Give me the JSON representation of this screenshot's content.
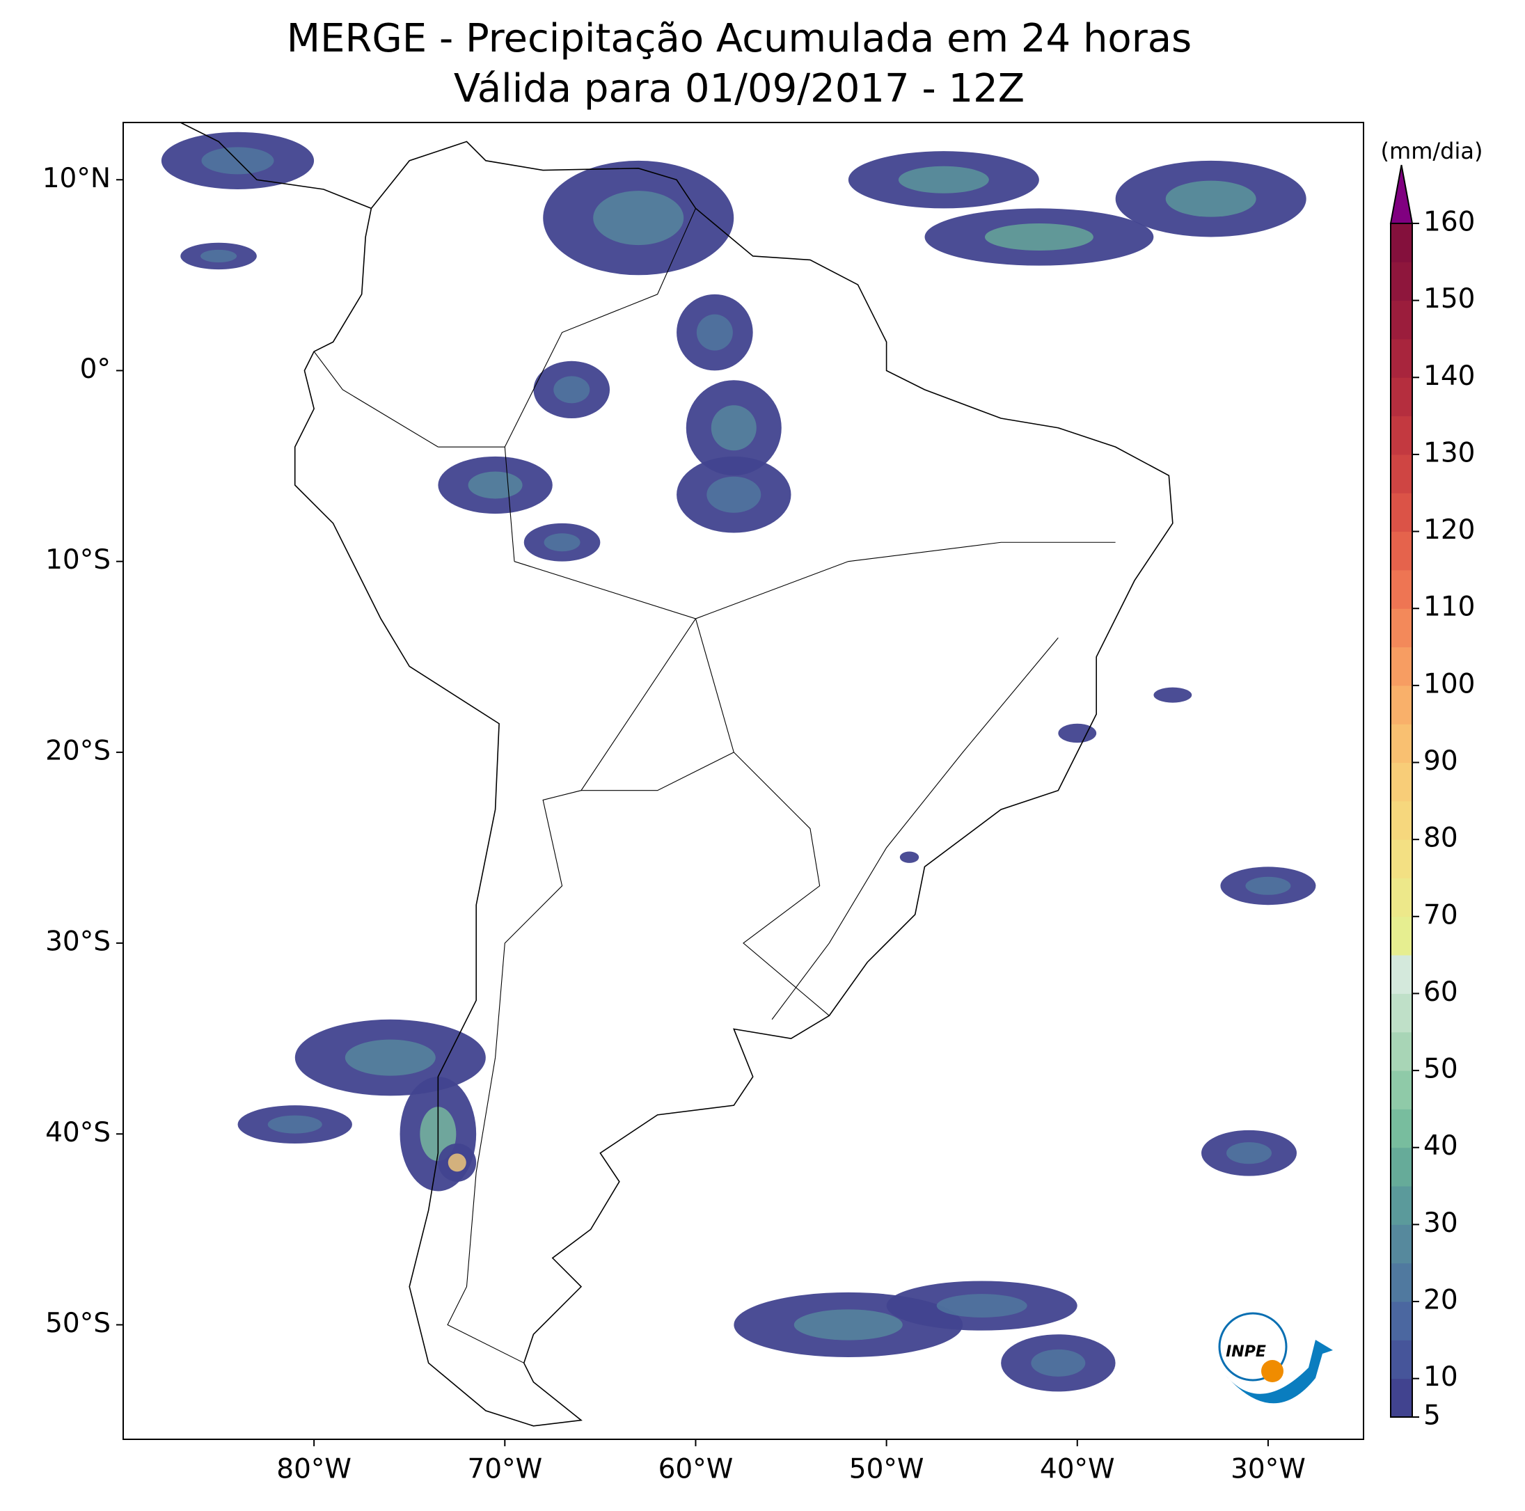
{
  "chart_data": {
    "type": "map",
    "title": "MERGE - Precipitação Acumulada em 24 horas",
    "subtitle": "Válida para 01/09/2017 - 12Z",
    "xlim": [
      -90,
      -25
    ],
    "ylim": [
      -56,
      13
    ],
    "xticks": [
      {
        "value": -80,
        "label": "80°W"
      },
      {
        "value": -70,
        "label": "70°W"
      },
      {
        "value": -60,
        "label": "60°W"
      },
      {
        "value": -50,
        "label": "50°W"
      },
      {
        "value": -40,
        "label": "40°W"
      },
      {
        "value": -30,
        "label": "30°W"
      }
    ],
    "yticks": [
      {
        "value": 10,
        "label": "10°N"
      },
      {
        "value": 0,
        "label": "0°"
      },
      {
        "value": -10,
        "label": "10°S"
      },
      {
        "value": -20,
        "label": "20°S"
      },
      {
        "value": -30,
        "label": "30°S"
      },
      {
        "value": -40,
        "label": "40°S"
      },
      {
        "value": -50,
        "label": "50°S"
      }
    ],
    "colorbar": {
      "label": "(mm/dia)",
      "lim": [
        5,
        160
      ],
      "extend": "max",
      "extend_color": "#800080",
      "ticks": [
        5,
        10,
        20,
        30,
        40,
        50,
        60,
        70,
        80,
        90,
        100,
        110,
        120,
        130,
        140,
        150,
        160
      ],
      "colors": [
        "#41438f",
        "#46559a",
        "#4b67a0",
        "#50799f",
        "#56899d",
        "#5b9a9b",
        "#66ab99",
        "#78bd9e",
        "#8fcaa8",
        "#a8d5b6",
        "#bfe0c8",
        "#d4e9dc",
        "#e6ee90",
        "#ede88a",
        "#f3e083",
        "#f6d77d",
        "#f8cd78",
        "#f9c071",
        "#f9b06a",
        "#f79d62",
        "#f3895a",
        "#ee7553",
        "#e5634c",
        "#db5347",
        "#cf4543",
        "#c33940",
        "#b52e3e",
        "#a8253d",
        "#9b1d3c",
        "#8e163c",
        "#84103c"
      ]
    },
    "logo": "INPE"
  }
}
